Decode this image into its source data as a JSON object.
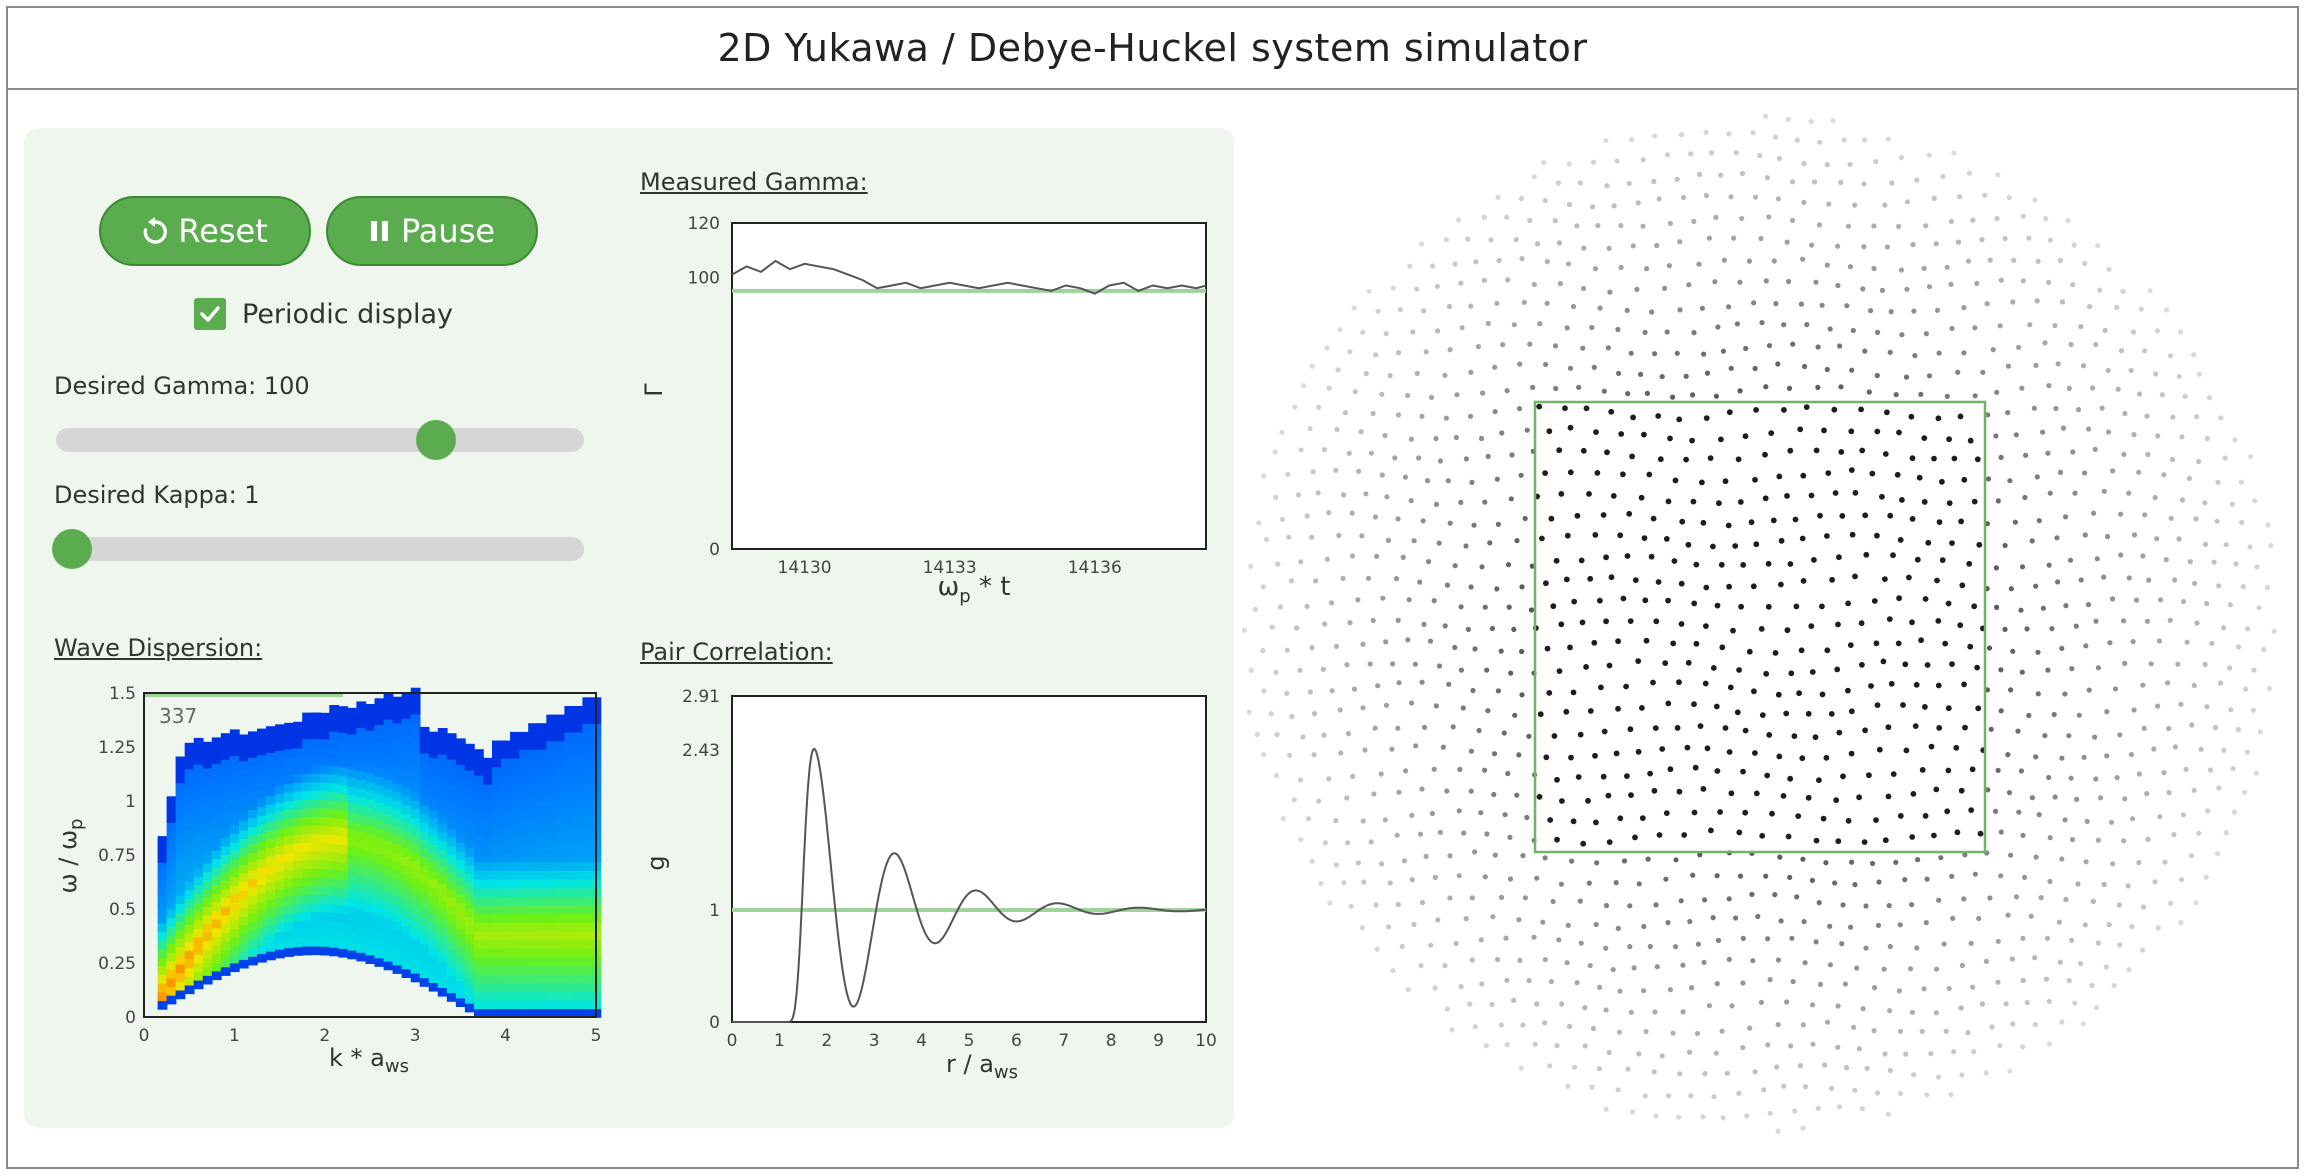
{
  "app": {
    "title": "2D Yukawa / Debye-Huckel system simulator"
  },
  "controls": {
    "reset_label": "Reset",
    "pause_label": "Pause",
    "periodic_label": "Periodic display",
    "periodic_checked": true,
    "gamma_label": "Desired Gamma: 100",
    "gamma_fraction": 0.72,
    "kappa_label": "Desired Kappa: 1",
    "kappa_fraction": 0.03
  },
  "icons": {
    "reset": "reset-icon",
    "pause": "pause-icon",
    "check": "checkmark-icon"
  },
  "colors": {
    "accent": "#5aac4f",
    "panel_bg": "#eef6ee",
    "ref_line": "#9fd39a",
    "curve": "#555555"
  },
  "wave_dispersion": {
    "title": "Wave Dispersion:",
    "counter": "337",
    "chart_data": {
      "type": "heatmap",
      "xlabel_main": "k * a",
      "xlabel_sub": "ws",
      "ylabel_main": "ω / ω",
      "ylabel_sub": "p",
      "xlim": [
        0,
        5
      ],
      "ylim": [
        0,
        1.5
      ],
      "xticks": [
        "0",
        "1",
        "2",
        "3",
        "4",
        "5"
      ],
      "yticks": [
        "0",
        "0.25",
        "0.5",
        "0.75",
        "1",
        "1.25",
        "1.5"
      ]
    }
  },
  "measured_gamma": {
    "title": "Measured Gamma:",
    "chart_data": {
      "type": "line",
      "ylabel": "Γ",
      "xlabel_main": "ω",
      "xlabel_sub": "p",
      "xlabel_tail": " * t",
      "xlim": [
        14128.5,
        14138.3
      ],
      "ylim": [
        0,
        120
      ],
      "xticks": [
        "14130",
        "14133",
        "14136"
      ],
      "yticks": [
        "0",
        "100",
        "120"
      ],
      "reference": 95,
      "x": [
        14128.5,
        14128.8,
        14129.1,
        14129.4,
        14129.7,
        14130,
        14130.3,
        14130.6,
        14130.9,
        14131.2,
        14131.5,
        14131.8,
        14132.1,
        14132.4,
        14132.7,
        14133,
        14133.3,
        14133.6,
        14133.9,
        14134.2,
        14134.5,
        14134.8,
        14135.1,
        14135.4,
        14135.7,
        14136,
        14136.3,
        14136.6,
        14136.9,
        14137.2,
        14137.5,
        14137.8,
        14138.1,
        14138.3
      ],
      "values": [
        101,
        104,
        102,
        106,
        103,
        105,
        104,
        103,
        101,
        99,
        96,
        97,
        98,
        96,
        97,
        98,
        97,
        96,
        97,
        98,
        97,
        96,
        95,
        97,
        96,
        94,
        97,
        98,
        95,
        97,
        96,
        97,
        96,
        97
      ]
    }
  },
  "pair_correlation": {
    "title": "Pair Correlation:",
    "chart_data": {
      "type": "line",
      "ylabel": "g",
      "xlabel_main": "r / a",
      "xlabel_sub": "ws",
      "xlim": [
        0,
        10
      ],
      "ylim": [
        0,
        2.91
      ],
      "xticks": [
        "0",
        "1",
        "2",
        "3",
        "4",
        "5",
        "6",
        "7",
        "8",
        "9",
        "10"
      ],
      "yticks": [
        "0",
        "1",
        "2.43",
        "2.91"
      ],
      "reference": 1
    }
  }
}
